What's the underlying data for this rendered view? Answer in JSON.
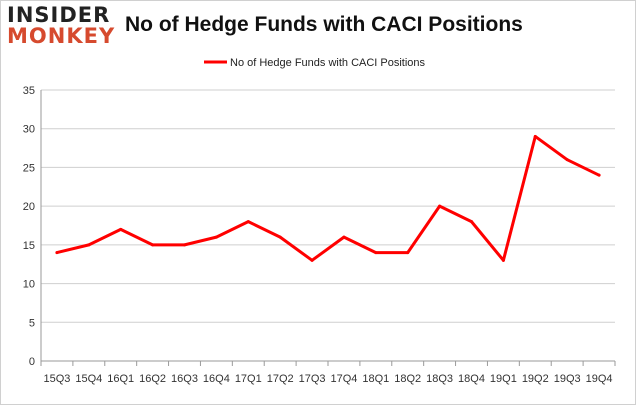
{
  "logo": {
    "line1": "INSIDER",
    "line2": "MONKEY"
  },
  "chart_data": {
    "type": "line",
    "title": "No of Hedge Funds with CACI Positions",
    "categories": [
      "15Q3",
      "15Q4",
      "16Q1",
      "16Q2",
      "16Q3",
      "16Q4",
      "17Q1",
      "17Q2",
      "17Q3",
      "17Q4",
      "18Q1",
      "18Q2",
      "18Q3",
      "18Q4",
      "19Q1",
      "19Q2",
      "19Q3",
      "19Q4"
    ],
    "series": [
      {
        "name": "No of Hedge Funds with CACI Positions",
        "values": [
          14,
          15,
          17,
          15,
          15,
          16,
          18,
          16,
          13,
          16,
          14,
          14,
          20,
          18,
          13,
          29,
          26,
          24
        ],
        "color": "#ff0000"
      }
    ],
    "ylim": [
      0,
      35
    ],
    "yticks": [
      0,
      5,
      10,
      15,
      20,
      25,
      30,
      35
    ],
    "grid": true,
    "legend": "top-center"
  }
}
